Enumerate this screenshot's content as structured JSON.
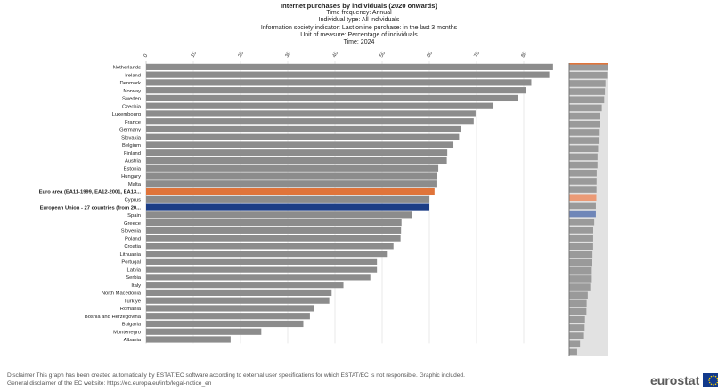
{
  "header": {
    "title": "Internet purchases by individuals (2020 onwards)",
    "lines": [
      "Time frequency:  Annual",
      "Individual type:  All individuals",
      "Information society indicator:  Last online purchase: in the last 3 months",
      "Unit of measure:  Percentage of individuals",
      "Time:  2024"
    ]
  },
  "footer": {
    "line1": "Disclaimer This graph has been created automatically by ESTAT/EC software according to external user specifications for which ESTAT/EC is not responsible. Graphic included.",
    "line2": "General disclaimer of the EC website: https://ec.europa.eu/info/legal-notice_en"
  },
  "logo": {
    "text": "eurostat",
    "icon": "eu-flag-icon"
  },
  "colors": {
    "default": "#8c8c8c",
    "euro_area": "#e0743a",
    "eu27": "#1b3d86",
    "overview_bg": "#e2e2e2"
  },
  "chart_data": {
    "type": "bar",
    "orientation": "horizontal",
    "x_ticks": [
      "0",
      "10",
      "20",
      "30",
      "40",
      "50",
      "60",
      "70",
      "80"
    ],
    "xlim": [
      0,
      90
    ],
    "grid": true,
    "categories": [
      "Netherlands",
      "Ireland",
      "Denmark",
      "Norway",
      "Sweden",
      "Czechia",
      "Luxembourg",
      "France",
      "Germany",
      "Slovakia",
      "Belgium",
      "Finland",
      "Austria",
      "Estonia",
      "Hungary",
      "Malta",
      "Euro area (EA11-1999, EA12-2001, EA13...",
      "Cyprus",
      "European Union - 27 countries (from 20...",
      "Spain",
      "Greece",
      "Slovenia",
      "Poland",
      "Croatia",
      "Lithuania",
      "Portugal",
      "Latvia",
      "Serbia",
      "Italy",
      "North Macedonia",
      "Türkiye",
      "Romania",
      "Bosnia and Herzegovina",
      "Bulgaria",
      "Montenegro",
      "Albania"
    ],
    "values": [
      86.2,
      85.4,
      81.6,
      80.4,
      78.8,
      73.4,
      69.8,
      69.4,
      66.7,
      66.3,
      65.1,
      63.8,
      63.7,
      61.9,
      61.7,
      61.5,
      61.1,
      60.0,
      60.0,
      56.4,
      54.1,
      54.0,
      53.9,
      52.4,
      51.0,
      48.9,
      48.9,
      47.5,
      41.8,
      39.3,
      38.8,
      35.5,
      34.7,
      33.3,
      24.4,
      17.9
    ],
    "highlight": {
      "Euro area (EA11-1999, EA12-2001, EA13...": "euro_area",
      "European Union - 27 countries (from 20...": "eu27"
    }
  }
}
